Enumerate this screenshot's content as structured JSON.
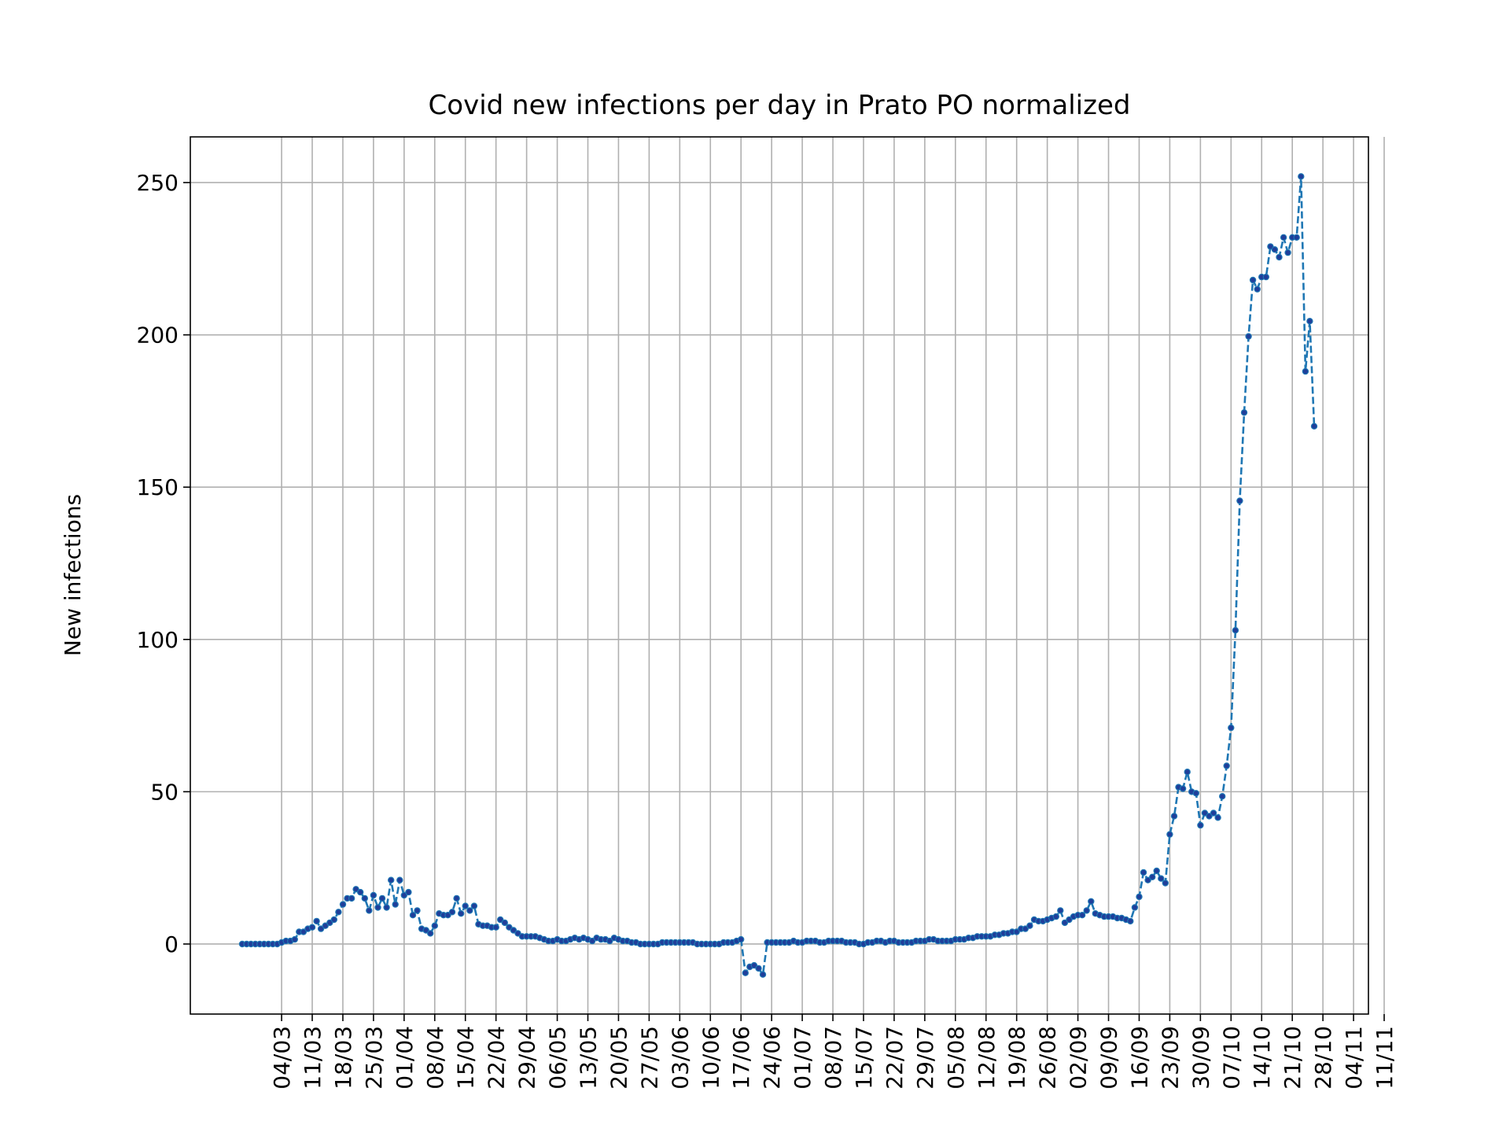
{
  "chart_data": {
    "type": "line",
    "title": "Covid new infections per day in Prato PO normalized",
    "xlabel": "",
    "ylabel": "New infections",
    "ylim": [
      -23,
      265
    ],
    "yticks": [
      0,
      50,
      100,
      150,
      200,
      250
    ],
    "grid": true,
    "legend": "none",
    "x_start": "24/02",
    "x_tick_labels": [
      "04/03",
      "11/03",
      "18/03",
      "25/03",
      "01/04",
      "08/04",
      "15/04",
      "22/04",
      "29/04",
      "06/05",
      "13/05",
      "20/05",
      "27/05",
      "03/06",
      "10/06",
      "17/06",
      "24/06",
      "01/07",
      "08/07",
      "15/07",
      "22/07",
      "29/07",
      "05/08",
      "12/08",
      "19/08",
      "26/08",
      "02/09",
      "09/09",
      "16/09",
      "23/09",
      "30/09",
      "07/10",
      "14/10",
      "21/10",
      "28/10",
      "04/11",
      "11/11"
    ],
    "colors": {
      "line": "#1f77b4",
      "marker": "#1f3e9a",
      "grid": "#b0b0b0"
    },
    "series": [
      {
        "values": [
          0,
          0,
          0,
          0,
          0,
          0,
          0,
          0,
          0,
          0.5,
          1,
          1,
          1.5,
          4,
          4,
          5,
          5.5,
          7.5,
          5,
          6,
          7,
          8,
          10.5,
          13,
          15,
          15,
          18,
          17,
          15,
          11,
          16,
          12,
          15,
          12,
          21,
          13,
          21,
          16,
          17,
          9.5,
          11,
          5,
          4.5,
          3.5,
          6,
          10,
          9.5,
          9.5,
          10.5,
          15,
          10,
          12.5,
          11,
          12.5,
          6.5,
          6,
          6,
          5.5,
          5.5,
          8,
          7,
          5.5,
          4.5,
          3.5,
          2.5,
          2.5,
          2.5,
          2.5,
          2,
          1.5,
          1,
          1,
          1.5,
          1,
          1,
          1.5,
          2,
          1.5,
          2,
          1.5,
          1,
          2,
          1.5,
          1.5,
          1,
          2,
          1.5,
          1,
          1,
          0.5,
          0.5,
          0,
          0,
          0,
          0,
          0,
          0.5,
          0.5,
          0.5,
          0.5,
          0.5,
          0.5,
          0.5,
          0.5,
          0,
          0,
          0,
          0,
          0,
          0,
          0.5,
          0.5,
          0.5,
          1,
          1.5,
          -9.5,
          -7.5,
          -7,
          -8,
          -10,
          0.5,
          0.5,
          0.5,
          0.5,
          0.5,
          0.5,
          1,
          0.5,
          0.5,
          1,
          1,
          1,
          0.5,
          0.5,
          1,
          1,
          1,
          1,
          0.5,
          0.5,
          0.5,
          0,
          0,
          0.5,
          0.5,
          1,
          1,
          0.5,
          1,
          1,
          0.5,
          0.5,
          0.5,
          0.5,
          1,
          1,
          1,
          1.5,
          1.5,
          1,
          1,
          1,
          1,
          1.5,
          1.5,
          1.5,
          2,
          2,
          2.5,
          2.5,
          2.5,
          2.5,
          3,
          3,
          3.5,
          3.5,
          4,
          4,
          5,
          5,
          6,
          8,
          7.5,
          7.5,
          8,
          8.5,
          9,
          11,
          7,
          8,
          9,
          9.5,
          9.5,
          11,
          14,
          10,
          9.5,
          9,
          9,
          9,
          8.5,
          8.5,
          8,
          7.5,
          12,
          15.5,
          23.5,
          21,
          22,
          24,
          21.5,
          20,
          36,
          42,
          51.5,
          51,
          56.5,
          50,
          49.5,
          39,
          43,
          42,
          43,
          41.5,
          48.5,
          58.5,
          71,
          103,
          145.5,
          174.5,
          199.5,
          218,
          215,
          219,
          219,
          229,
          228,
          225.5,
          232,
          227,
          232,
          232,
          252,
          188,
          204.5,
          170
        ]
      }
    ]
  }
}
